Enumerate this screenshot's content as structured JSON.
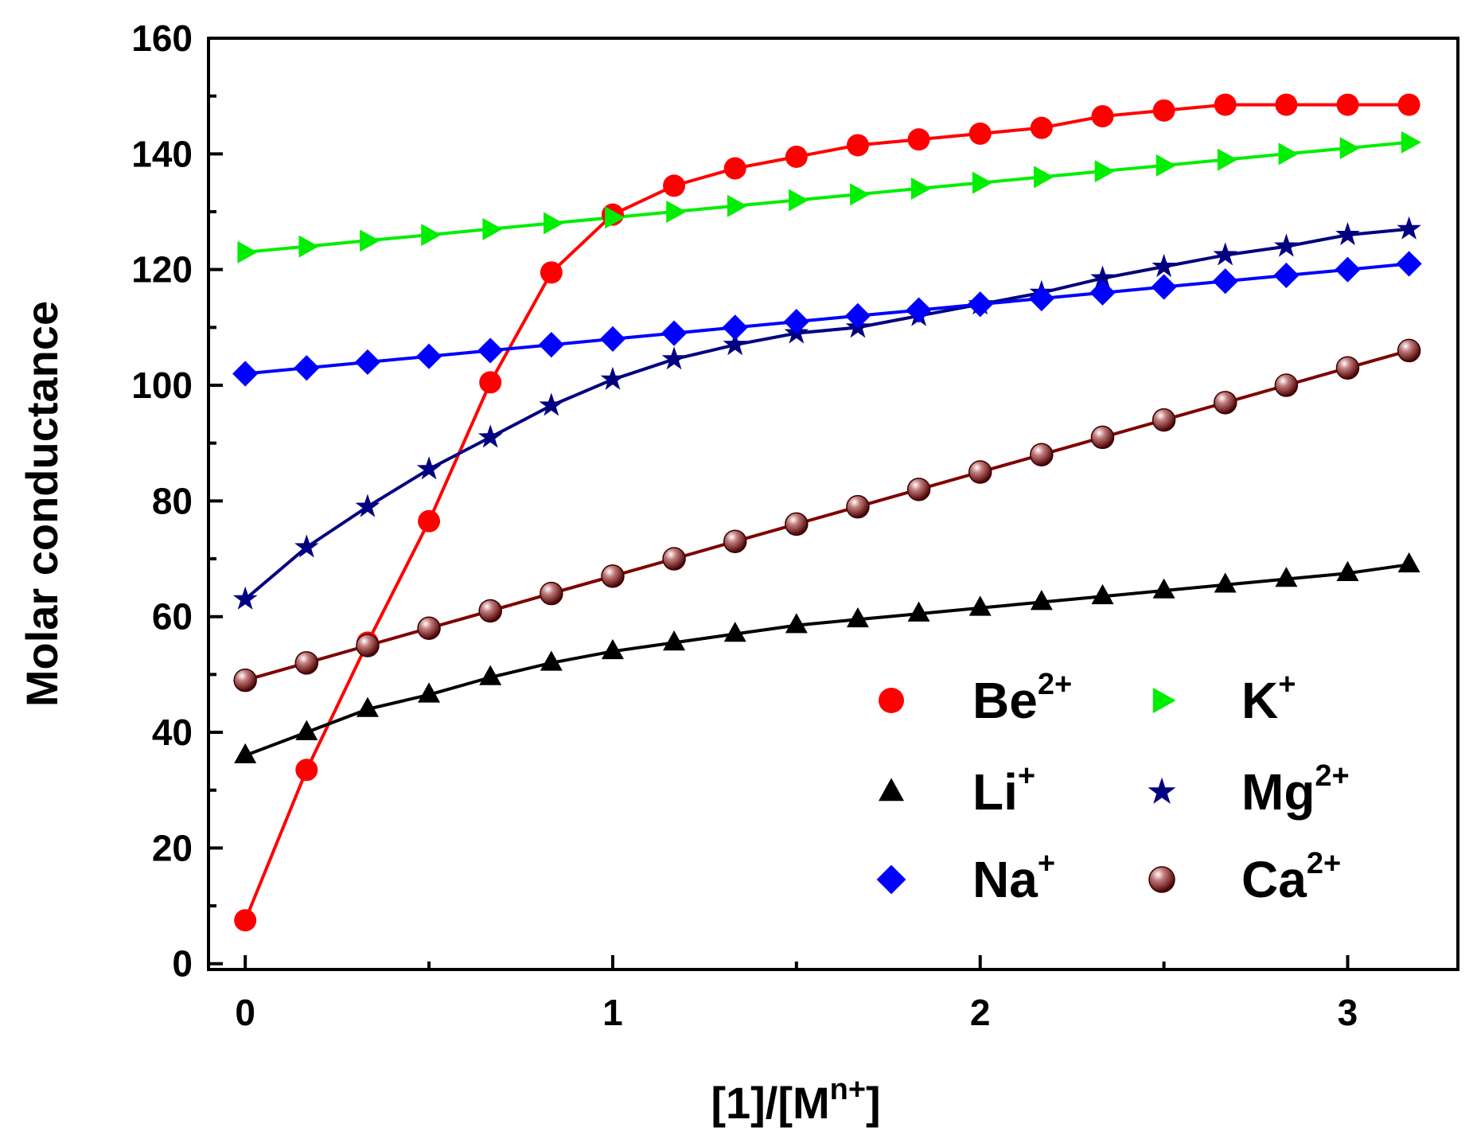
{
  "chart_data": {
    "type": "line",
    "title": "",
    "xlabel": {
      "main": "[1]/[M",
      "sup": "n+",
      "end": "]"
    },
    "ylabel": "Molar conductance",
    "xlim": [
      -0.1,
      3.3
    ],
    "ylim": [
      -1,
      160
    ],
    "xticks": [
      0,
      1,
      2,
      3
    ],
    "xtick_labels": [
      "0",
      "1",
      "2",
      "3"
    ],
    "yticks": [
      0,
      20,
      40,
      60,
      80,
      100,
      120,
      140,
      160
    ],
    "ytick_labels": [
      "0",
      "20",
      "40",
      "60",
      "80",
      "100",
      "120",
      "140",
      "160"
    ],
    "grid": false,
    "legend_position": "bottom-right",
    "x": [
      0,
      0.167,
      0.333,
      0.5,
      0.667,
      0.833,
      1.0,
      1.167,
      1.333,
      1.5,
      1.667,
      1.833,
      2.0,
      2.167,
      2.333,
      2.5,
      2.667,
      2.833,
      3.0,
      3.167
    ],
    "series": [
      {
        "name": "Be",
        "sup": "2+",
        "color": "#ff0000",
        "marker": "circle",
        "values": [
          7.5,
          33.5,
          55.5,
          76.5,
          100.5,
          119.5,
          129.5,
          134.5,
          137.5,
          139.5,
          141.5,
          142.5,
          143.5,
          144.5,
          146.5,
          147.5,
          148.5,
          148.5,
          148.5,
          148.5
        ]
      },
      {
        "name": "K",
        "sup": "+",
        "color": "#00ee00",
        "marker": "triangle-right",
        "values": [
          123,
          124,
          125,
          126,
          127,
          128,
          129,
          130,
          131,
          132,
          133,
          134,
          135,
          136,
          137,
          138,
          139,
          140,
          141,
          142
        ]
      },
      {
        "name": "Li",
        "sup": "+",
        "color": "#000000",
        "marker": "triangle-up",
        "values": [
          36,
          40,
          44,
          46.5,
          49.5,
          52,
          54,
          55.5,
          57,
          58.5,
          59.5,
          60.5,
          61.5,
          62.5,
          63.5,
          64.5,
          65.5,
          66.5,
          67.5,
          69
        ]
      },
      {
        "name": "Mg",
        "sup": "2+",
        "color": "#000080",
        "marker": "star",
        "values": [
          63,
          72,
          79,
          85.5,
          91,
          96.5,
          101,
          104.5,
          107,
          109,
          110,
          112,
          114,
          116,
          118.5,
          120.5,
          122.5,
          124,
          126,
          127
        ]
      },
      {
        "name": "Na",
        "sup": "+",
        "color": "#0000ff",
        "marker": "diamond",
        "values": [
          102,
          103,
          104,
          105,
          106,
          107,
          108,
          109,
          110,
          111,
          112,
          113,
          114,
          115,
          116,
          117,
          118,
          119,
          120,
          121
        ]
      },
      {
        "name": "Ca",
        "sup": "2+",
        "color": "#800000",
        "marker": "sphere",
        "values": [
          49,
          52,
          55,
          58,
          61,
          64,
          67,
          70,
          73,
          76,
          79,
          82,
          85,
          88,
          91,
          94,
          97,
          100,
          103,
          106
        ]
      }
    ]
  }
}
